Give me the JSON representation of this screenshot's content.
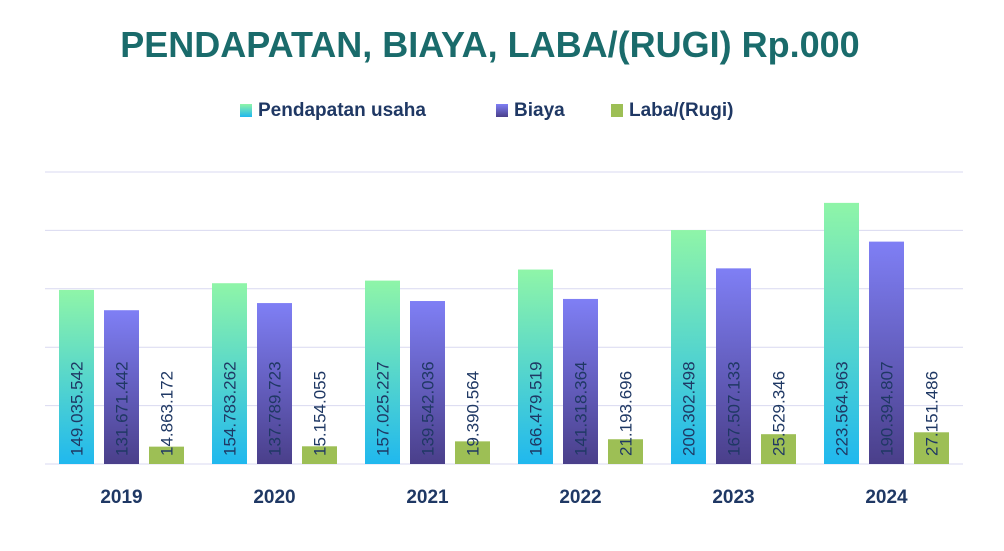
{
  "chart_data": {
    "type": "bar",
    "title": "PENDAPATAN, BIAYA, LABA/(RUGI) Rp.000",
    "xlabel": "",
    "ylabel": "",
    "legend_position": "top",
    "grid": true,
    "ylim": [
      0,
      250000000
    ],
    "categories": [
      "2019",
      "2020",
      "2021",
      "2022",
      "2023",
      "2024"
    ],
    "series": [
      {
        "name": "Pendapatan usaha",
        "values": [
          149035542,
          154783262,
          157025227,
          166479519,
          200302498,
          223564963
        ],
        "labels": [
          "149.035.542",
          "154.783.262",
          "157.025.227",
          "166.479.519",
          "200.302.498",
          "223.564.963"
        ],
        "color_top": "#8ff5a8",
        "color_bottom": "#20b8ee"
      },
      {
        "name": "Biaya",
        "values": [
          131671442,
          137789723,
          139542036,
          141318364,
          167507133,
          190394807
        ],
        "labels": [
          "131.671.442",
          "137.789.723",
          "139.542.036",
          "141.318.364",
          "167.507.133",
          "190.394.807"
        ],
        "color_top": "#7f7ff5",
        "color_bottom": "#4a3f8a"
      },
      {
        "name": "Laba/(Rugi)",
        "values": [
          14863172,
          15154055,
          19390564,
          21193696,
          25529346,
          27151486
        ],
        "labels": [
          "14.863.172",
          "15.154.055",
          "19.390.564",
          "21.193.696",
          "25.529.346",
          "27.151.486"
        ],
        "color_top": "#9dbf55",
        "color_bottom": "#9dbf55"
      }
    ]
  },
  "colors": {
    "title": "#1a6b6b",
    "axis_text": "#1f3864",
    "grid": "#d9d9f0"
  }
}
